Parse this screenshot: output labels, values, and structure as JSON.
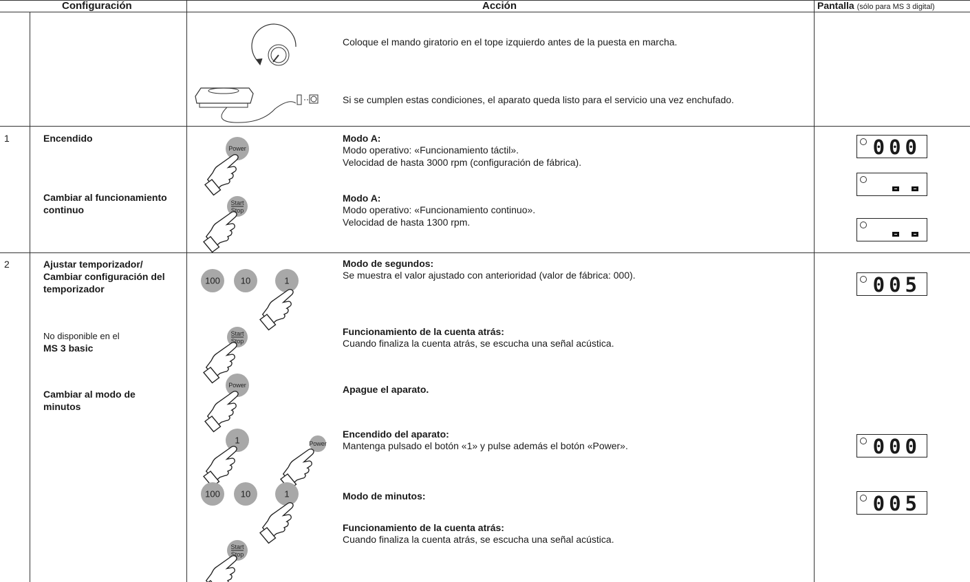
{
  "header": {
    "configuration": "Configuración",
    "action": "Acción",
    "display": "Pantalla",
    "display_note": "(sólo para MS 3 digital)"
  },
  "buttons": {
    "power": "Power",
    "start": "Start",
    "stop": "Stop",
    "b100": "100",
    "b10": "10",
    "b1": "1"
  },
  "intro": {
    "knob_text": "Coloque el mando giratorio en el tope izquierdo antes de la puesta en marcha.",
    "plug_text": "Si se cumplen estas condiciones, el aparato queda listo para el servicio una vez enchufado."
  },
  "steps": [
    {
      "number": "1",
      "settings": [
        "Encendido",
        "Cambiar al funcionamiento continuo"
      ],
      "actions": [
        {
          "title": "Modo A:",
          "lines": [
            "Modo operativo: «Funcionamiento táctil».",
            "Velocidad de hasta 3000 rpm (configuración de fábrica)."
          ]
        },
        {
          "title": "Modo A:",
          "lines": [
            "Modo operativo: «Funcionamiento continuo».",
            "Velocidad de hasta 1300 rpm."
          ]
        }
      ],
      "displays": [
        "000"
      ]
    },
    {
      "number": "2",
      "settings": [
        "Ajustar temporizador/ Cambiar configuración del temporizador",
        "No disponible en el",
        "MS 3 basic",
        "Cambiar al modo de minutos"
      ],
      "actions": [
        {
          "title": "Modo de segundos:",
          "lines": [
            "Se muestra el valor ajustado con anterioridad (valor de fábrica: 000)."
          ]
        },
        {
          "title": "Funcionamiento de la cuenta atrás:",
          "lines": [
            "Cuando finaliza la cuenta atrás, se escucha una señal acústica."
          ]
        },
        {
          "title": "Apague el aparato."
        },
        {
          "title": "Encendido del aparato:",
          "lines": [
            "Mantenga pulsado el botón «1» y pulse además el botón «Power»."
          ]
        },
        {
          "title": "Modo de minutos:"
        },
        {
          "title": "Funcionamiento de la cuenta atrás:",
          "lines": [
            "Cuando finaliza la cuenta atrás, se escucha una señal acústica."
          ]
        }
      ],
      "displays": [
        "005",
        "000",
        "005"
      ]
    }
  ]
}
